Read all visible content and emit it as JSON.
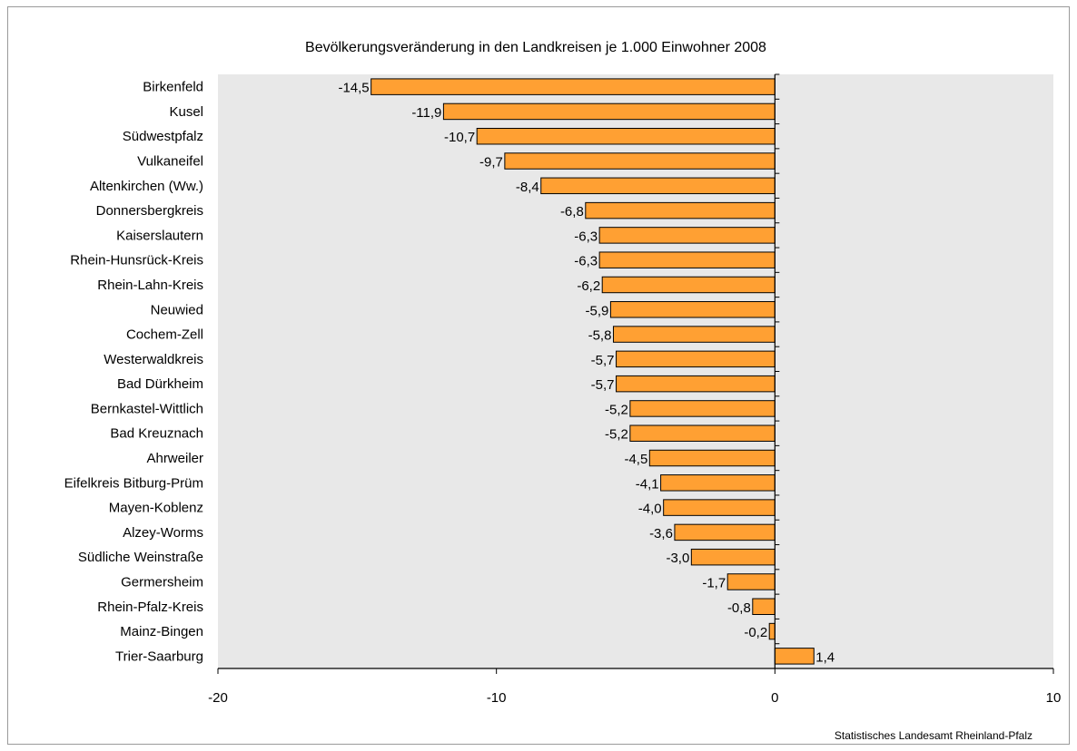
{
  "chart_data": {
    "type": "bar",
    "orientation": "horizontal",
    "title": "Bevölkerungsveränderung in den Landkreisen je 1.000 Einwohner 2008",
    "source": "Statistisches Landesamt  Rheinland-Pfalz",
    "categories": [
      "Birkenfeld",
      "Kusel",
      "Südwestpfalz",
      "Vulkaneifel",
      "Altenkirchen (Ww.)",
      "Donnersbergkreis",
      "Kaiserslautern",
      "Rhein-Hunsrück-Kreis",
      "Rhein-Lahn-Kreis",
      "Neuwied",
      "Cochem-Zell",
      "Westerwaldkreis",
      "Bad Dürkheim",
      "Bernkastel-Wittlich",
      "Bad Kreuznach",
      "Ahrweiler",
      "Eifelkreis Bitburg-Prüm",
      "Mayen-Koblenz",
      "Alzey-Worms",
      "Südliche Weinstraße",
      "Germersheim",
      "Rhein-Pfalz-Kreis",
      "Mainz-Bingen",
      "Trier-Saarburg"
    ],
    "values": [
      -14.5,
      -11.9,
      -10.7,
      -9.7,
      -8.4,
      -6.8,
      -6.3,
      -6.3,
      -6.2,
      -5.9,
      -5.8,
      -5.7,
      -5.7,
      -5.2,
      -5.2,
      -4.5,
      -4.1,
      -4.0,
      -3.6,
      -3.0,
      -1.7,
      -0.8,
      -0.2,
      1.4
    ],
    "value_labels": [
      "-14,5",
      "-11,9",
      "-10,7",
      "-9,7",
      "-8,4",
      "-6,8",
      "-6,3",
      "-6,3",
      "-6,2",
      "-5,9",
      "-5,8",
      "-5,7",
      "-5,7",
      "-5,2",
      "-5,2",
      "-4,5",
      "-4,1",
      "-4,0",
      "-3,6",
      "-3,0",
      "-1,7",
      "-0,8",
      "-0,2",
      "1,4"
    ],
    "xlim": [
      -20,
      10
    ],
    "xticks": [
      -20,
      -10,
      0,
      10
    ],
    "grid": false,
    "colors": {
      "bar": "#FFA033",
      "bar_stroke": "#000000",
      "plot_background": "#E8E8E8"
    }
  }
}
